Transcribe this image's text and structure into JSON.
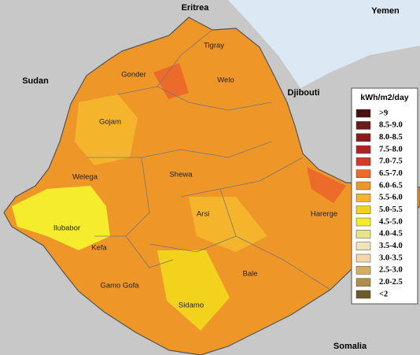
{
  "map": {
    "countries": [
      "Eritrea",
      "Yemen",
      "Sudan",
      "Djibouti",
      "Somalia"
    ],
    "regions": [
      "Tigray",
      "Gonder",
      "Welo",
      "Gojam",
      "Welega",
      "Shewa",
      "Arsi",
      "Harerge",
      "Ilubabor",
      "Kefa",
      "Bale",
      "Gamo Gofa",
      "Sidamo"
    ],
    "legend": {
      "title": "kWh/m2/day",
      "items": [
        {
          "label": ">9",
          "color": "#4a1010"
        },
        {
          "label": "8.5-9.0",
          "color": "#6b1a1a"
        },
        {
          "label": "8.0-8.5",
          "color": "#8b1a1a"
        },
        {
          "label": "7.5-8.0",
          "color": "#b22222"
        },
        {
          "label": "7.0-7.5",
          "color": "#d43a2a"
        },
        {
          "label": "6.5-7.0",
          "color": "#ec6a2a"
        },
        {
          "label": "6.0-6.5",
          "color": "#ee9628"
        },
        {
          "label": "5.5-6.0",
          "color": "#f4b52c"
        },
        {
          "label": "5.0-5.5",
          "color": "#f2d21c"
        },
        {
          "label": "4.5-5.0",
          "color": "#f6ec2e"
        },
        {
          "label": "4.0-4.5",
          "color": "#e6e38a"
        },
        {
          "label": "3.5-4.0",
          "color": "#eee6b8"
        },
        {
          "label": "3.0-3.5",
          "color": "#f5d6a8"
        },
        {
          "label": "2.5-3.0",
          "color": "#d6ad60"
        },
        {
          "label": "2.0-2.5",
          "color": "#ae8c4a"
        },
        {
          "label": "<2",
          "color": "#6e5a2c"
        }
      ]
    }
  }
}
